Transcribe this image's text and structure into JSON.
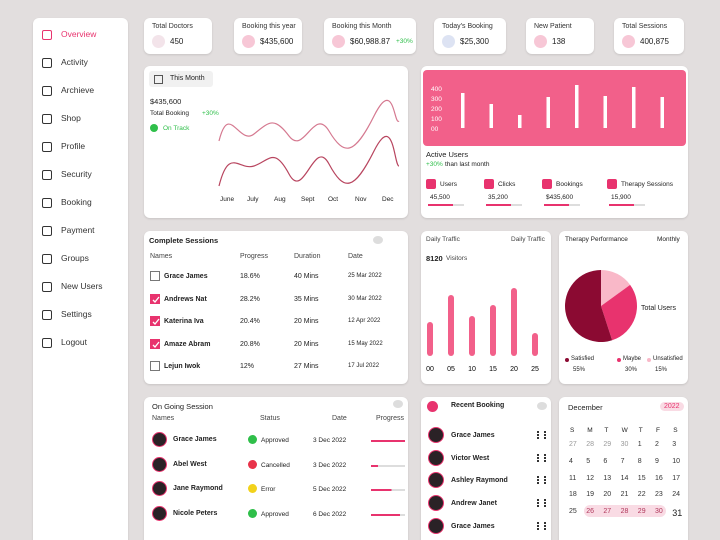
{
  "sidebar": {
    "items": [
      "Overview",
      "Activity",
      "Archieve",
      "Shop",
      "Profile",
      "Security",
      "Booking",
      "Payment",
      "Groups",
      "New Users",
      "Settings",
      "Logout"
    ],
    "active": 0
  },
  "stats": [
    {
      "label": "Total Doctors",
      "value": "450"
    },
    {
      "label": "Booking  this  year",
      "value": "$435,600"
    },
    {
      "label": "Booking  this Month",
      "value": "$60,988.87",
      "delta": "+30%"
    },
    {
      "label": "Today's Booking",
      "value": "$25,300"
    },
    {
      "label": "New Patient",
      "value": "138"
    },
    {
      "label": "Total Sessions",
      "value": "400,875"
    }
  ],
  "month_panel": {
    "filter": "This Month",
    "amount": "$435,600",
    "caption": "Total Booking",
    "delta": "+30%",
    "status": "On Track",
    "months": [
      "June",
      "July",
      "Aug",
      "Sept",
      "Oct",
      "Nov",
      "Dec"
    ]
  },
  "active_users": {
    "chart": {
      "type": "bar",
      "values": [
        350,
        240,
        130,
        310,
        430,
        320,
        410,
        310
      ],
      "ylim": [
        0,
        440
      ],
      "yticks": [
        400,
        300,
        200,
        100,
        {
          "value": 0,
          "label": "00"
        }
      ],
      "color": "#ffffff"
    },
    "title": "Active Users",
    "delta": "+30%",
    "delta_caption": "than last month",
    "metrics": [
      {
        "label": "Users",
        "value": "45,500"
      },
      {
        "label": "Clicks",
        "value": "35,200"
      },
      {
        "label": "Bookings",
        "value": "$435,600"
      },
      {
        "label": "Therapy Sessions",
        "value": "15,900"
      }
    ]
  },
  "complete_sessions": {
    "title": "Complete Sessions",
    "headers": [
      "Names",
      "Progress",
      "Duration",
      "Date"
    ],
    "rows": [
      {
        "checked": false,
        "cells": [
          "Grace James",
          "18.6%",
          "40 Mins",
          "25 Mar 2022"
        ]
      },
      {
        "checked": true,
        "cells": [
          "Andrews Nat",
          "28.2%",
          "35 Mins",
          "30 Mar 2022"
        ]
      },
      {
        "checked": true,
        "cells": [
          "Katerina  Iva",
          "20.4%",
          "20 Mins",
          "12 Apr 2022"
        ]
      },
      {
        "checked": true,
        "cells": [
          "Amaze Abram",
          "20.8%",
          "20 Mins",
          "15 May 2022"
        ]
      },
      {
        "checked": false,
        "cells": [
          "Lejun Iwok",
          "12%",
          "27 Mins",
          "17 Jul 2022"
        ]
      }
    ]
  },
  "daily_traffic": {
    "title": "Daily Traffic",
    "filter": "Daily Traffic",
    "total": "8120",
    "caption": "Visitors",
    "chart": {
      "type": "bar",
      "x": [
        0,
        5,
        10,
        15,
        20,
        25
      ],
      "xticks": [
        {
          "value": 0,
          "label": "00"
        },
        {
          "value": 5,
          "label": "05"
        },
        10,
        15,
        20,
        25
      ],
      "values": [
        34,
        61,
        40,
        51,
        68,
        23
      ],
      "ylim": [
        0,
        80
      ],
      "color": "#f2608a"
    }
  },
  "therapy": {
    "title": "Therapy Performance",
    "filter": "Monthly",
    "center_label": "Total Users",
    "chart": {
      "type": "pie",
      "categories": [
        "Satisfied",
        "Maybe",
        "Unsatisfied"
      ],
      "values": [
        55,
        30,
        15
      ],
      "value_labels": [
        "55%",
        "30%",
        "15%"
      ],
      "colors": [
        "#8b0a32",
        "#e8336e",
        "#f9b8c8"
      ]
    }
  },
  "ongoing": {
    "title": "On Going Session",
    "headers": [
      "Names",
      "Status",
      "Date",
      "Progress"
    ],
    "rows": [
      {
        "name": "Grace James",
        "status": "Approved",
        "status_color": "#2fbf4a",
        "date": "3 Dec 2022"
      },
      {
        "name": "Abel West",
        "status": "Cancelled",
        "status_color": "#e8334a",
        "date": "3 Dec 2022"
      },
      {
        "name": "Jane  Raymond",
        "status": "Error",
        "status_color": "#f2d21b",
        "date": "5 Dec 2022"
      },
      {
        "name": "Nicole Peters",
        "status": "Approved",
        "status_color": "#2fbf4a",
        "date": "6 Dec 2022"
      }
    ]
  },
  "recent_booking": {
    "title": "Recent Booking",
    "names": [
      "Grace James",
      "Victor West",
      "Ashley Raymond",
      "Andrew Janet",
      "Grace James"
    ]
  },
  "calendar": {
    "month": "December",
    "year": "2022",
    "weekdays": [
      "S",
      "M",
      "T",
      "W",
      "T",
      "F",
      "S"
    ],
    "weeks": [
      [
        27,
        28,
        29,
        30,
        1,
        2,
        3
      ],
      [
        4,
        5,
        6,
        7,
        8,
        9,
        10
      ],
      [
        11,
        12,
        13,
        14,
        15,
        16,
        17
      ],
      [
        18,
        19,
        20,
        21,
        22,
        23,
        24
      ],
      [
        25,
        26,
        27,
        28,
        29,
        30,
        31
      ]
    ]
  }
}
